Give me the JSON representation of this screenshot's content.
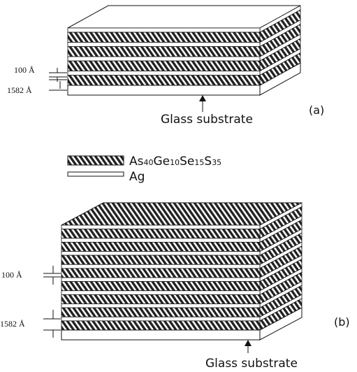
{
  "panels": [
    {
      "thickness_labels": [
        "100 Å",
        "1582 Å"
      ],
      "substrate_label": "Glass substrate",
      "panel_label": "(a)"
    },
    {
      "thickness_labels": [
        "100 Å",
        "1582 Å"
      ],
      "substrate_label": "Glass substrate",
      "panel_label": "(b)"
    }
  ],
  "legend": [
    {
      "label_parts": [
        "As",
        "40",
        "Ge",
        "10",
        "Se",
        "15",
        "S",
        "35"
      ]
    },
    {
      "label": "Ag"
    }
  ]
}
